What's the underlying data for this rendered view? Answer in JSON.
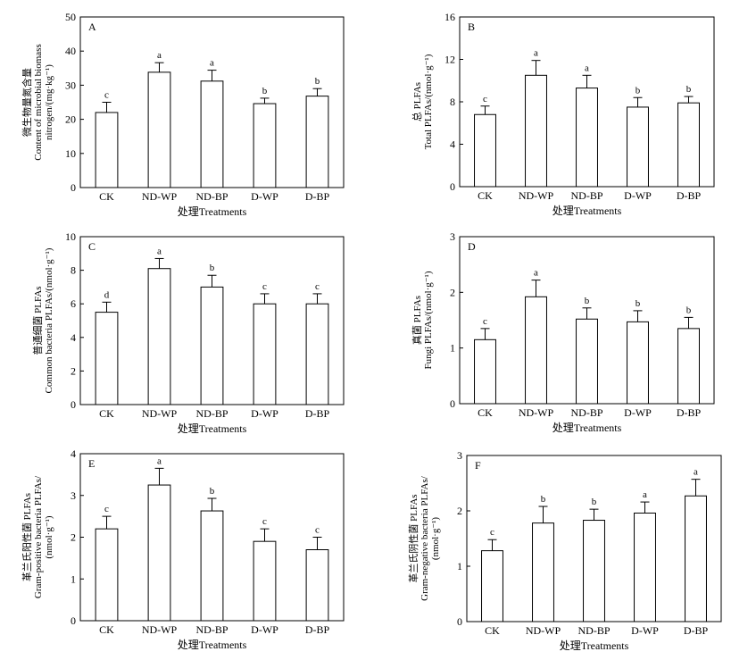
{
  "figure": {
    "xlabel": "处理Treatments"
  },
  "chart_data": [
    {
      "panel": "A",
      "type": "bar",
      "categories": [
        "CK",
        "ND-WP",
        "ND-BP",
        "D-WP",
        "D-BP"
      ],
      "values": [
        22,
        33.8,
        31.2,
        24.6,
        26.8
      ],
      "errors": [
        3,
        2.8,
        3.2,
        1.6,
        2.2
      ],
      "labels": [
        "c",
        "a",
        "a",
        "b",
        "b"
      ],
      "ylim": [
        0,
        50
      ],
      "yticks": [
        0,
        10,
        20,
        30,
        40,
        50
      ],
      "ylabel_lines": [
        "微生物量氮含量",
        "Content of microbial biomass",
        "nitrogen/(mg·kg⁻¹)"
      ]
    },
    {
      "panel": "B",
      "type": "bar",
      "categories": [
        "CK",
        "ND-WP",
        "ND-BP",
        "D-WP",
        "D-BP"
      ],
      "values": [
        6.8,
        10.5,
        9.3,
        7.5,
        7.9
      ],
      "errors": [
        0.8,
        1.4,
        1.2,
        0.9,
        0.6
      ],
      "labels": [
        "c",
        "a",
        "a",
        "b",
        "b"
      ],
      "ylim": [
        0,
        16
      ],
      "yticks": [
        0,
        4,
        8,
        12,
        16
      ],
      "ylabel_lines": [
        "总 PLFAs",
        "Total PLFAs/(nmol·g⁻¹)"
      ]
    },
    {
      "panel": "C",
      "type": "bar",
      "categories": [
        "CK",
        "ND-WP",
        "ND-BP",
        "D-WP",
        "D-BP"
      ],
      "values": [
        5.5,
        8.1,
        7.0,
        6.0,
        6.0
      ],
      "errors": [
        0.6,
        0.6,
        0.7,
        0.6,
        0.6
      ],
      "labels": [
        "d",
        "a",
        "b",
        "c",
        "c"
      ],
      "ylim": [
        0,
        10
      ],
      "yticks": [
        0,
        2,
        4,
        6,
        8,
        10
      ],
      "ylabel_lines": [
        "普通细菌 PLFAs",
        "Common bacteria PLFAs/(nmol·g⁻¹)"
      ]
    },
    {
      "panel": "D",
      "type": "bar",
      "categories": [
        "CK",
        "ND-WP",
        "ND-BP",
        "D-WP",
        "D-BP"
      ],
      "values": [
        1.15,
        1.92,
        1.52,
        1.47,
        1.35
      ],
      "errors": [
        0.2,
        0.3,
        0.2,
        0.2,
        0.2
      ],
      "labels": [
        "c",
        "a",
        "b",
        "b",
        "b"
      ],
      "ylim": [
        0,
        3
      ],
      "yticks": [
        0,
        1,
        2,
        3
      ],
      "ylabel_lines": [
        "真菌 PLFAs",
        "Fungi PLFAs/(nmol·g⁻¹)"
      ]
    },
    {
      "panel": "E",
      "type": "bar",
      "categories": [
        "CK",
        "ND-WP",
        "ND-BP",
        "D-WP",
        "D-BP"
      ],
      "values": [
        2.2,
        3.25,
        2.63,
        1.9,
        1.7
      ],
      "errors": [
        0.3,
        0.4,
        0.3,
        0.3,
        0.3
      ],
      "labels": [
        "c",
        "a",
        "b",
        "c",
        "c"
      ],
      "ylim": [
        0,
        4
      ],
      "yticks": [
        0,
        1,
        2,
        3,
        4
      ],
      "ylabel_lines": [
        "革兰氏阳性菌 PLFAs",
        "Gram-positive bacteria PLFAs/",
        "(nmol·g⁻¹)"
      ]
    },
    {
      "panel": "F",
      "type": "bar",
      "categories": [
        "CK",
        "ND-WP",
        "ND-BP",
        "D-WP",
        "D-BP"
      ],
      "values": [
        1.28,
        1.78,
        1.83,
        1.96,
        2.27
      ],
      "errors": [
        0.2,
        0.3,
        0.2,
        0.2,
        0.3
      ],
      "labels": [
        "c",
        "b",
        "b",
        "a",
        "a"
      ],
      "ylim": [
        0,
        3
      ],
      "yticks": [
        0,
        1,
        2,
        3
      ],
      "ylabel_lines": [
        "革兰氏阴性菌 PLFAs",
        "Gram-negative bacteria PLFAs/",
        "(nmol·g⁻¹)"
      ]
    }
  ]
}
